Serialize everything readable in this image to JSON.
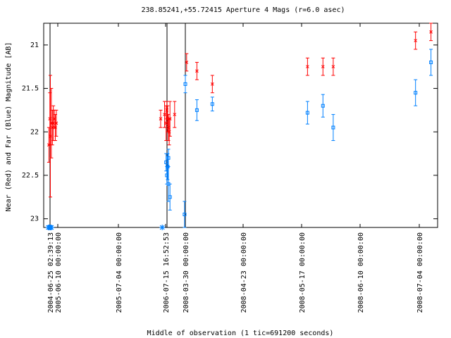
{
  "chart_data": {
    "type": "scatter",
    "title": "238.85241,+55.72415   Aperture 4 Mags (r=6.0 asec)",
    "xlabel": "Middle of observation (1 tic=691200 seconds)",
    "ylabel": "Near (Red) and Far (Blue) Magnitude [AB]",
    "ylim": [
      23.1,
      20.75
    ],
    "y_inverted": true,
    "y_ticks": [
      "21",
      "21.5",
      "22",
      "22.5",
      "23"
    ],
    "x_ticks": [
      "2004-06-25 02:39:13",
      "2005-06-10 00:00:00",
      "2005-07-04 00:00:00",
      "2006-07-15 16:52:53",
      "2008-03-30 00:00:00",
      "2008-04-23 00:00:00",
      "2008-05-17 00:00:00",
      "2008-06-10 00:00:00",
      "2008-07-04 00:00:00"
    ],
    "x_units": "days since 2008-03-30 (axis ticks every 8 days on compressed segments)",
    "segments": [
      {
        "label_start": "2004-06-25 02:39:13",
        "x_start_tick": 0
      },
      {
        "label_start": "2006-07-15 16:52:53",
        "x_start_tick": 4
      },
      {
        "label_start": "2008-03-30 00:00:00",
        "x_start_tick": 5
      }
    ],
    "series": [
      {
        "name": "Near (Red)",
        "color": "#ff0000",
        "marker": "x",
        "points": [
          {
            "x": 0.1,
            "y": 22.15,
            "err": 0.2
          },
          {
            "x": 0.2,
            "y": 21.85,
            "err": 0.3
          },
          {
            "x": 0.25,
            "y": 22.05,
            "err": 0.7
          },
          {
            "x": 0.35,
            "y": 21.9,
            "err": 0.4
          },
          {
            "x": 0.45,
            "y": 21.95,
            "err": 0.2
          },
          {
            "x": 0.55,
            "y": 21.9,
            "err": 0.2
          },
          {
            "x": 0.65,
            "y": 21.85,
            "err": 0.1
          },
          {
            "x": 0.75,
            "y": 21.95,
            "err": 0.15
          },
          {
            "x": 0.85,
            "y": 21.9,
            "err": 0.15
          },
          {
            "x": 3.8,
            "y": 21.85,
            "err": 0.1
          },
          {
            "x": 4.05,
            "y": 21.8,
            "err": 0.15
          },
          {
            "x": 4.15,
            "y": 21.9,
            "err": 0.2
          },
          {
            "x": 4.2,
            "y": 21.75,
            "err": 0.1
          },
          {
            "x": 4.25,
            "y": 21.85,
            "err": 0.15
          },
          {
            "x": 4.3,
            "y": 21.95,
            "err": 0.15
          },
          {
            "x": 4.35,
            "y": 22.0,
            "err": 0.15
          },
          {
            "x": 4.4,
            "y": 21.85,
            "err": 0.2
          },
          {
            "x": 4.7,
            "y": 21.8,
            "err": 0.15
          },
          {
            "x": 5.05,
            "y": 21.2,
            "err": 0.1
          },
          {
            "x": 5.45,
            "y": 21.3,
            "err": 0.1
          },
          {
            "x": 6.05,
            "y": 21.45,
            "err": 0.1
          },
          {
            "x": 9.75,
            "y": 21.25,
            "err": 0.1
          },
          {
            "x": 10.35,
            "y": 21.25,
            "err": 0.1
          },
          {
            "x": 10.75,
            "y": 21.25,
            "err": 0.1
          },
          {
            "x": 13.95,
            "y": 20.95,
            "err": 0.1
          },
          {
            "x": 14.55,
            "y": 20.85,
            "err": 0.1
          }
        ]
      },
      {
        "name": "Far (Blue)",
        "color": "#0080ff",
        "marker": "square",
        "points": [
          {
            "x": 4.15,
            "y": 22.35,
            "err": 0.1
          },
          {
            "x": 4.2,
            "y": 22.5,
            "err": 0.1
          },
          {
            "x": 4.25,
            "y": 22.4,
            "err": 0.15
          },
          {
            "x": 4.3,
            "y": 22.3,
            "err": 0.1
          },
          {
            "x": 4.3,
            "y": 22.6,
            "err": 0.2
          },
          {
            "x": 4.4,
            "y": 22.75,
            "err": 0.15
          },
          {
            "x": 5.0,
            "y": 21.45,
            "err": 0.1
          },
          {
            "x": 4.97,
            "y": 22.95,
            "err": 0.15
          },
          {
            "x": 5.45,
            "y": 21.75,
            "err": 0.12
          },
          {
            "x": 6.05,
            "y": 21.68,
            "err": 0.08
          },
          {
            "x": 9.75,
            "y": 21.78,
            "err": 0.13
          },
          {
            "x": 10.35,
            "y": 21.7,
            "err": 0.13
          },
          {
            "x": 10.75,
            "y": 21.95,
            "err": 0.15
          },
          {
            "x": 13.95,
            "y": 21.55,
            "err": 0.15
          },
          {
            "x": 14.55,
            "y": 21.2,
            "err": 0.15
          }
        ],
        "upper_limits": [
          {
            "x": 0.05,
            "y": 23.1
          },
          {
            "x": 0.15,
            "y": 23.1
          },
          {
            "x": 0.25,
            "y": 23.1
          },
          {
            "x": 0.35,
            "y": 23.1
          },
          {
            "x": 3.9,
            "y": 23.1
          }
        ]
      }
    ],
    "grid": false,
    "legend": "none"
  }
}
